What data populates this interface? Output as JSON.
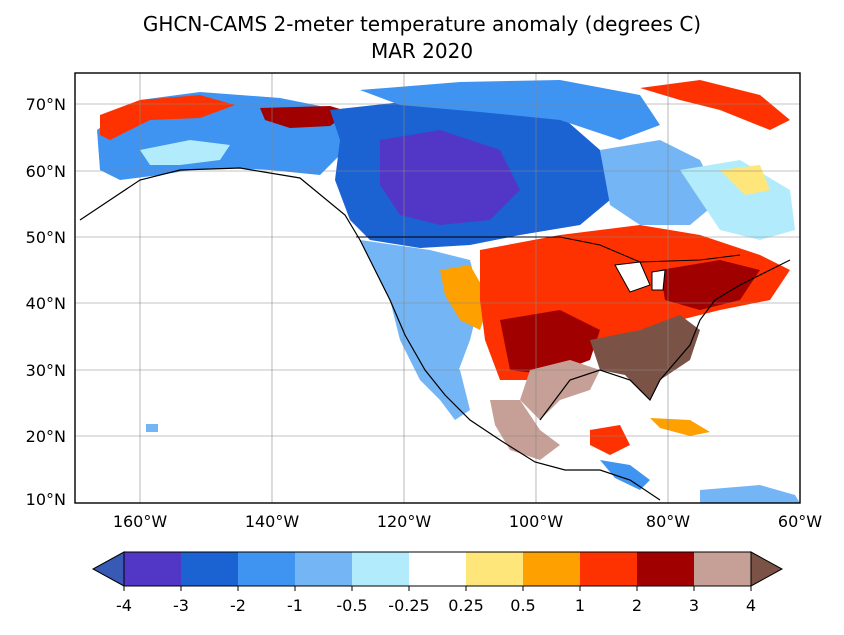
{
  "title": {
    "line1": "GHCN-CAMS 2-meter temperature anomaly (degrees C)",
    "line2": "MAR 2020"
  },
  "map": {
    "projection": "equirectangular",
    "lon_range": [
      -170,
      -60
    ],
    "lat_range": [
      10,
      75
    ],
    "gridlines": true,
    "coastline_color": "#000000",
    "lat_ticks": [
      "10°N",
      "20°N",
      "30°N",
      "40°N",
      "50°N",
      "60°N",
      "70°N"
    ],
    "lon_ticks": [
      "160°W",
      "140°W",
      "120°W",
      "100°W",
      "80°W",
      "60°W"
    ]
  },
  "colorbar": {
    "orientation": "horizontal",
    "extend": "both",
    "tick_labels": [
      "-4",
      "-3",
      "-2",
      "-1",
      "-0.5",
      "-0.25",
      "0.25",
      "0.5",
      "1",
      "2",
      "3",
      "4"
    ],
    "colors": [
      "#5237c6",
      "#1b62d3",
      "#3f93f1",
      "#74b5f6",
      "#b2ecfc",
      "#ffffff",
      "#fee67a",
      "#fea000",
      "#fe3200",
      "#a00000",
      "#c6a096"
    ],
    "under_color": "#3859b4",
    "over_color": "#7a5246"
  }
}
